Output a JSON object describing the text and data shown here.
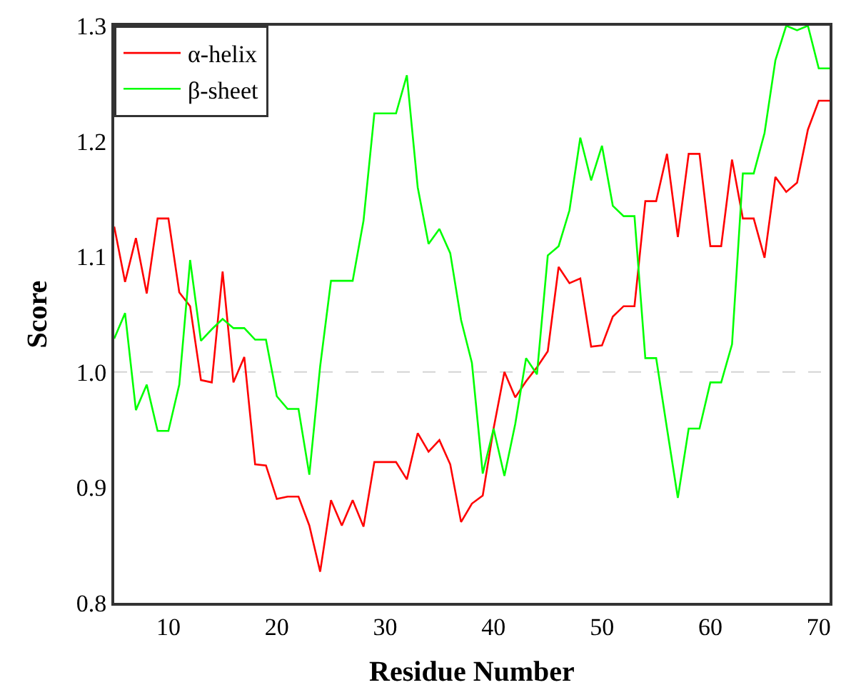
{
  "chart_data": {
    "type": "line",
    "xlabel": "Residue Number",
    "ylabel": "Score",
    "x": [
      5,
      6,
      7,
      8,
      9,
      10,
      11,
      12,
      13,
      14,
      15,
      16,
      17,
      18,
      19,
      20,
      21,
      22,
      23,
      24,
      25,
      26,
      27,
      28,
      29,
      30,
      31,
      32,
      33,
      34,
      35,
      36,
      37,
      38,
      39,
      40,
      41,
      42,
      43,
      44,
      45,
      46,
      47,
      48,
      49,
      50,
      51,
      52,
      53,
      54,
      55,
      56,
      57,
      58,
      59,
      60,
      61,
      62,
      63,
      64,
      65,
      66,
      67,
      68,
      69,
      70,
      71
    ],
    "series": [
      {
        "name": "α-helix",
        "color": "#ff0000",
        "values": [
          1.126,
          1.078,
          1.116,
          1.068,
          1.133,
          1.133,
          1.069,
          1.057,
          0.993,
          0.991,
          1.087,
          0.991,
          1.013,
          0.92,
          0.919,
          0.89,
          0.892,
          0.892,
          0.867,
          0.827,
          0.889,
          0.867,
          0.889,
          0.866,
          0.922,
          0.922,
          0.922,
          0.907,
          0.947,
          0.931,
          0.941,
          0.92,
          0.87,
          0.886,
          0.893,
          0.951,
          1.0,
          0.978,
          0.992,
          1.004,
          1.018,
          1.091,
          1.077,
          1.081,
          1.022,
          1.023,
          1.048,
          1.057,
          1.057,
          1.148,
          1.148,
          1.189,
          1.117,
          1.189,
          1.189,
          1.109,
          1.109,
          1.184,
          1.133,
          1.133,
          1.099,
          1.169,
          1.156,
          1.164,
          1.21,
          1.235,
          1.235
        ]
      },
      {
        "name": "β-sheet",
        "color": "#00ff00",
        "values": [
          1.029,
          1.051,
          0.967,
          0.989,
          0.949,
          0.949,
          0.989,
          1.097,
          1.027,
          1.037,
          1.046,
          1.038,
          1.038,
          1.028,
          1.028,
          0.979,
          0.968,
          0.968,
          0.911,
          1.005,
          1.079,
          1.079,
          1.079,
          1.131,
          1.224,
          1.224,
          1.224,
          1.257,
          1.16,
          1.111,
          1.124,
          1.103,
          1.045,
          1.008,
          0.912,
          0.951,
          0.91,
          0.955,
          1.012,
          0.998,
          1.101,
          1.109,
          1.14,
          1.203,
          1.166,
          1.196,
          1.144,
          1.135,
          1.135,
          1.012,
          1.012,
          0.951,
          0.891,
          0.951,
          0.951,
          0.991,
          0.991,
          1.024,
          1.172,
          1.172,
          1.207,
          1.27,
          1.3,
          1.296,
          1.3,
          1.263,
          1.263
        ]
      }
    ],
    "xlim": [
      5,
      71
    ],
    "xticks": [
      10,
      20,
      30,
      40,
      50,
      60,
      70
    ],
    "ylim": [
      0.8,
      1.3
    ],
    "yticks": [
      {
        "value": 0.8,
        "label": "0.8"
      },
      {
        "value": 0.9,
        "label": "0.9"
      },
      {
        "value": 1.0,
        "label": "1.0"
      },
      {
        "value": 1.1,
        "label": "1.1"
      },
      {
        "value": 1.2,
        "label": "1.2"
      },
      {
        "value": 1.3,
        "label": "1.3"
      }
    ],
    "ref_lines": [
      {
        "axis": "y",
        "value": 1.0,
        "label": null,
        "color": "#d3d3d3",
        "line_style": "dashed"
      }
    ],
    "grid": false,
    "legend": "top left",
    "marker": "none",
    "line_style": "solid"
  }
}
